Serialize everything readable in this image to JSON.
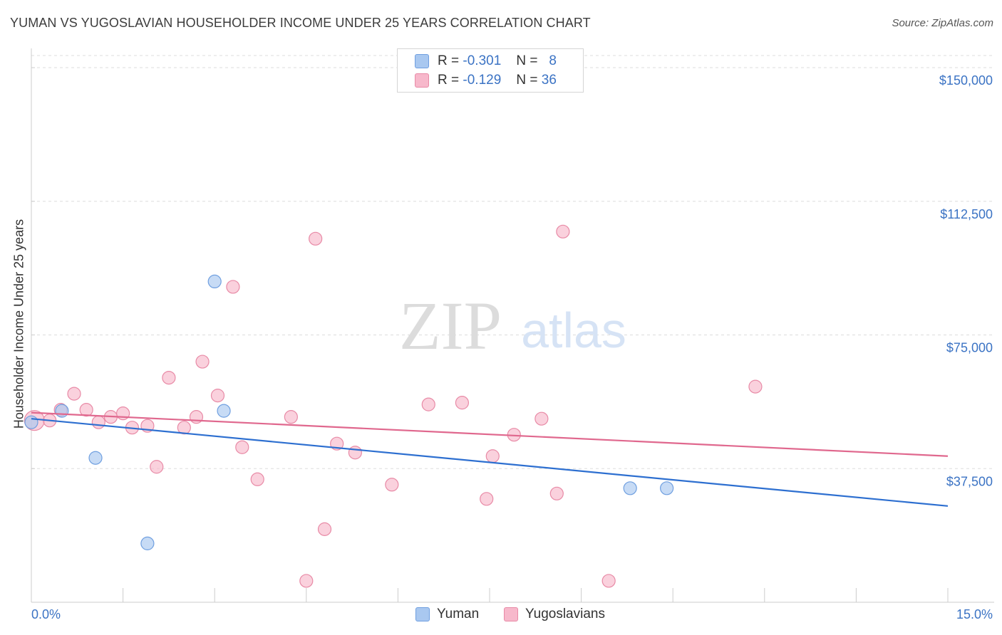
{
  "header": {
    "title": "YUMAN VS YUGOSLAVIAN HOUSEHOLDER INCOME UNDER 25 YEARS CORRELATION CHART",
    "source": "Source: ZipAtlas.com"
  },
  "watermark": {
    "zip": "ZIP",
    "atlas": "atlas"
  },
  "legend": {
    "rows": [
      {
        "r_label": "R =",
        "r_value": "-0.301",
        "n_label": "N =",
        "n_value": "8",
        "color": "#a9c8f0",
        "border": "#6f9fe0"
      },
      {
        "r_label": "R =",
        "r_value": "-0.129",
        "n_label": "N =",
        "n_value": "36",
        "color": "#f7b8cb",
        "border": "#e88aa6"
      }
    ]
  },
  "bottom_legend": {
    "items": [
      {
        "label": "Yuman",
        "color": "#a9c8f0",
        "border": "#6f9fe0"
      },
      {
        "label": "Yugoslavians",
        "color": "#f7b8cb",
        "border": "#e88aa6"
      }
    ]
  },
  "chart_data": {
    "type": "scatter",
    "title": "YUMAN VS YUGOSLAVIAN HOUSEHOLDER INCOME UNDER 25 YEARS CORRELATION CHART",
    "xlabel": "",
    "ylabel": "Householder Income Under 25 years",
    "xlim": [
      0,
      15
    ],
    "ylim": [
      0,
      153000
    ],
    "x_tick_labels": [
      "0.0%",
      "15.0%"
    ],
    "y_ticks": [
      37500,
      75000,
      112500,
      150000
    ],
    "y_tick_labels": [
      "$37,500",
      "$75,000",
      "$112,500",
      "$150,000"
    ],
    "grid": true,
    "legend_position": "top-center",
    "series": [
      {
        "name": "Yuman",
        "color": "#6f9fe0",
        "fill": "#a9c8f0",
        "line_color": "#2d6fd0",
        "trend": {
          "x": [
            0,
            15
          ],
          "y": [
            51500,
            27000
          ]
        },
        "points": [
          {
            "x": 0.0,
            "y": 50500
          },
          {
            "x": 0.5,
            "y": 53700
          },
          {
            "x": 1.05,
            "y": 40500
          },
          {
            "x": 1.9,
            "y": 16500
          },
          {
            "x": 3.0,
            "y": 90000
          },
          {
            "x": 3.15,
            "y": 53700
          },
          {
            "x": 9.8,
            "y": 32000
          },
          {
            "x": 10.4,
            "y": 32000
          }
        ]
      },
      {
        "name": "Yugoslavians",
        "color": "#e88aa6",
        "fill": "#f7b8cb",
        "line_color": "#e0688e",
        "trend": {
          "x": [
            0,
            15
          ],
          "y": [
            53200,
            41000
          ]
        },
        "points": [
          {
            "x": 0.05,
            "y": 51000
          },
          {
            "x": 0.3,
            "y": 51000
          },
          {
            "x": 0.48,
            "y": 54000
          },
          {
            "x": 0.7,
            "y": 58500
          },
          {
            "x": 0.9,
            "y": 54000
          },
          {
            "x": 1.1,
            "y": 50500
          },
          {
            "x": 1.3,
            "y": 52000
          },
          {
            "x": 1.5,
            "y": 53000
          },
          {
            "x": 1.65,
            "y": 49000
          },
          {
            "x": 1.9,
            "y": 49500
          },
          {
            "x": 2.05,
            "y": 38000
          },
          {
            "x": 2.25,
            "y": 63000
          },
          {
            "x": 2.5,
            "y": 49000
          },
          {
            "x": 2.7,
            "y": 52000
          },
          {
            "x": 2.8,
            "y": 67500
          },
          {
            "x": 3.05,
            "y": 58000
          },
          {
            "x": 3.3,
            "y": 88500
          },
          {
            "x": 3.45,
            "y": 43500
          },
          {
            "x": 3.7,
            "y": 34500
          },
          {
            "x": 4.25,
            "y": 52000
          },
          {
            "x": 4.5,
            "y": 6000
          },
          {
            "x": 4.65,
            "y": 102000
          },
          {
            "x": 4.8,
            "y": 20500
          },
          {
            "x": 5.0,
            "y": 44500
          },
          {
            "x": 5.3,
            "y": 42000
          },
          {
            "x": 5.9,
            "y": 33000
          },
          {
            "x": 6.5,
            "y": 55500
          },
          {
            "x": 7.05,
            "y": 56000
          },
          {
            "x": 7.45,
            "y": 29000
          },
          {
            "x": 7.55,
            "y": 41000
          },
          {
            "x": 7.9,
            "y": 47000
          },
          {
            "x": 8.35,
            "y": 51500
          },
          {
            "x": 8.6,
            "y": 30500
          },
          {
            "x": 8.7,
            "y": 104000
          },
          {
            "x": 9.45,
            "y": 6000
          },
          {
            "x": 11.85,
            "y": 60500
          }
        ]
      }
    ]
  }
}
